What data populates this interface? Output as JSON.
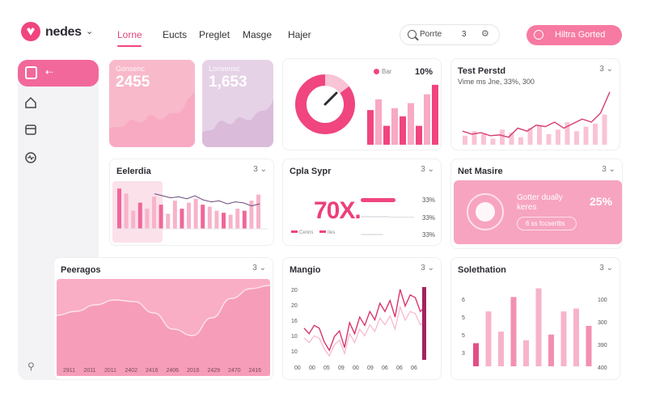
{
  "app": {
    "brand": "nedes"
  },
  "nav": {
    "items": [
      {
        "label": "Lorne",
        "active": true
      },
      {
        "label": "Eucts"
      },
      {
        "label": "Preglet"
      },
      {
        "label": "Masge"
      },
      {
        "label": "Hajer"
      }
    ]
  },
  "search": {
    "placeholder": "Porrte",
    "shortcut": "3"
  },
  "cta": {
    "label": "Hiltra Gorted"
  },
  "stats": [
    {
      "label": "Gonsenc",
      "value": "2455"
    },
    {
      "label": "Lonsensc",
      "value": "1,653"
    }
  ],
  "gauge_card": {
    "legend": "Bar",
    "value": "10%",
    "bars": [
      55,
      72,
      30,
      58,
      45,
      66,
      30,
      80,
      95
    ],
    "gauge_fraction": 0.6
  },
  "trend_card": {
    "title": "Test Perstd",
    "subline": "Vime ms Jne, 33%, 300",
    "menu": "3",
    "line": [
      18,
      14,
      16,
      12,
      13,
      10,
      22,
      18,
      26,
      24,
      30,
      22,
      28,
      34,
      30,
      42,
      70
    ],
    "bars": [
      12,
      18,
      14,
      8,
      20,
      16,
      10,
      22,
      26,
      14,
      20,
      30,
      18,
      24,
      28,
      40
    ]
  },
  "bar_card": {
    "title": "Eelerdia",
    "menu": "3",
    "bars": [
      40,
      35,
      18,
      26,
      20,
      32,
      24,
      15,
      28,
      20,
      26,
      30,
      24,
      22,
      18,
      16,
      14,
      20,
      18,
      28,
      34
    ],
    "line": [
      30,
      28,
      26,
      27,
      25,
      28,
      24,
      22,
      23,
      20,
      22,
      21,
      18,
      20
    ]
  },
  "kpi_card": {
    "title": "Cpla Sypr",
    "menu": "3",
    "value": "70X.",
    "rows": [
      {
        "pct": "33%",
        "fill": 0.65
      },
      {
        "pct": "33%",
        "fill": 0.55
      },
      {
        "pct": "33%",
        "fill": 0.42
      }
    ],
    "legend": [
      "Cenns",
      "Iles"
    ]
  },
  "promo_card": {
    "title": "Net Masire",
    "menu": "3",
    "text": "Gotter dually keres",
    "pct": "25%",
    "button": "6 ss fccsertlts"
  },
  "area_card": {
    "title": "Peeragos",
    "menu": "3",
    "x_labels": [
      "2911",
      "2011",
      "2011",
      "2402",
      "2416",
      "2406",
      "2016",
      "2429",
      "2470",
      "2416"
    ],
    "curve": [
      0.55,
      0.6,
      0.68,
      0.74,
      0.72,
      0.58,
      0.38,
      0.3,
      0.52,
      0.76,
      0.88,
      0.92
    ]
  },
  "line_card": {
    "title": "Mangio",
    "menu": "3",
    "y_labels": [
      "20",
      "20",
      "16",
      "10",
      "10"
    ],
    "x_labels": [
      "00",
      "00",
      "05",
      "09",
      "00",
      "09",
      "06",
      "06",
      "06"
    ],
    "line": [
      12,
      10,
      13,
      12,
      7,
      4,
      9,
      11,
      5,
      14,
      10,
      16,
      13,
      18,
      15,
      21,
      18,
      22,
      16,
      26,
      20,
      24,
      23,
      18,
      20
    ],
    "highlight": 100
  },
  "bars_card": {
    "title": "Solethation",
    "menu": "3",
    "left_labels": [
      "6",
      "5",
      "5",
      "3"
    ],
    "right_labels": [
      "100",
      "300",
      "390",
      "400"
    ],
    "bars": [
      40,
      95,
      60,
      120,
      45,
      135,
      55,
      95,
      100,
      70
    ]
  }
}
